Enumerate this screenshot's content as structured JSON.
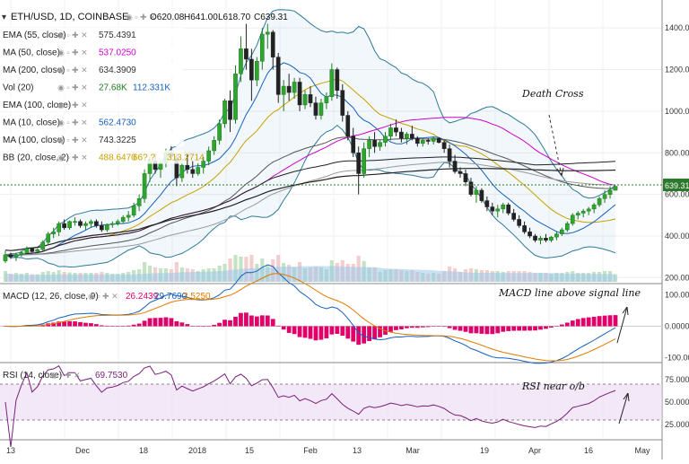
{
  "chart_data": {
    "type": "candlestick",
    "title": "ETH/USD, 1D, COINBASE",
    "ohlc": {
      "open": "O620.08",
      "high": "H641.00",
      "low": "L618.70",
      "close": "C639.31"
    },
    "last_price_label": "639.31",
    "price_axis": {
      "ticks": [
        "1400.00",
        "1200.00",
        "1000.00",
        "800.00",
        "600.00",
        "400.00",
        "200.00"
      ],
      "ylim": [
        180,
        1500
      ]
    },
    "x_ticks": [
      "13",
      "Dec",
      "18",
      "2018",
      "15",
      "Feb",
      "13",
      "Mar",
      "19",
      "Apr",
      "16",
      "May"
    ],
    "indicators": [
      {
        "label": "EMA (55, close)",
        "value": "575.4391",
        "color": "#333333"
      },
      {
        "label": "MA (50, close)",
        "value": "537.0250",
        "color": "#cc00cc"
      },
      {
        "label": "MA (200, close)",
        "value": "634.3909",
        "color": "#333333"
      },
      {
        "label": "Vol (20)",
        "value": "27.68K",
        "value2": "112.331K",
        "color": "#1e7a1e",
        "color2": "#1560bd"
      },
      {
        "label": "EMA (100, close)",
        "value": "",
        "color": "#aaaaaa"
      },
      {
        "label": "MA (10, close)",
        "value": "562.4730",
        "color": "#1560bd"
      },
      {
        "label": "MA (100, close)",
        "value": "743.3225",
        "color": "#333333"
      },
      {
        "label": "BB (20, close, 2)",
        "value": "488.6470",
        "value2": "66?.?",
        "value3": "313.2714",
        "color": "#c8a000"
      }
    ],
    "candles_approx": [
      [
        280,
        330,
        270,
        310
      ],
      [
        310,
        320,
        290,
        300
      ],
      [
        300,
        320,
        280,
        310
      ],
      [
        310,
        330,
        300,
        320
      ],
      [
        320,
        350,
        310,
        340
      ],
      [
        340,
        345,
        320,
        325
      ],
      [
        325,
        340,
        315,
        335
      ],
      [
        335,
        380,
        330,
        370
      ],
      [
        370,
        420,
        360,
        410
      ],
      [
        410,
        440,
        390,
        420
      ],
      [
        420,
        470,
        400,
        460
      ],
      [
        460,
        480,
        430,
        440
      ],
      [
        440,
        475,
        430,
        470
      ],
      [
        470,
        490,
        450,
        470
      ],
      [
        470,
        480,
        440,
        450
      ],
      [
        450,
        470,
        430,
        460
      ],
      [
        460,
        480,
        440,
        470
      ],
      [
        470,
        480,
        440,
        450
      ],
      [
        450,
        470,
        420,
        430
      ],
      [
        430,
        460,
        420,
        455
      ],
      [
        455,
        470,
        440,
        460
      ],
      [
        460,
        480,
        450,
        470
      ],
      [
        470,
        500,
        460,
        490
      ],
      [
        490,
        520,
        470,
        500
      ],
      [
        500,
        560,
        490,
        545
      ],
      [
        545,
        600,
        520,
        580
      ],
      [
        580,
        720,
        560,
        700
      ],
      [
        700,
        780,
        660,
        760
      ],
      [
        760,
        800,
        700,
        720
      ],
      [
        720,
        770,
        680,
        750
      ],
      [
        750,
        820,
        730,
        800
      ],
      [
        800,
        840,
        760,
        780
      ],
      [
        780,
        800,
        640,
        680
      ],
      [
        680,
        760,
        660,
        740
      ],
      [
        740,
        790,
        700,
        720
      ],
      [
        720,
        760,
        680,
        700
      ],
      [
        700,
        750,
        690,
        730
      ],
      [
        730,
        780,
        700,
        760
      ],
      [
        760,
        830,
        740,
        810
      ],
      [
        810,
        880,
        790,
        860
      ],
      [
        860,
        960,
        840,
        940
      ],
      [
        940,
        1060,
        920,
        1050
      ],
      [
        1050,
        1100,
        900,
        960
      ],
      [
        960,
        1220,
        940,
        1180
      ],
      [
        1180,
        1360,
        1140,
        1300
      ],
      [
        1300,
        1420,
        1200,
        1250
      ],
      [
        1250,
        1300,
        1050,
        1150
      ],
      [
        1150,
        1260,
        1120,
        1240
      ],
      [
        1240,
        1400,
        1200,
        1370
      ],
      [
        1370,
        1420,
        1300,
        1380
      ],
      [
        1380,
        1390,
        1200,
        1260
      ],
      [
        1260,
        1280,
        1040,
        1080
      ],
      [
        1080,
        1150,
        1000,
        1120
      ],
      [
        1120,
        1180,
        1050,
        1090
      ],
      [
        1090,
        1160,
        1060,
        1140
      ],
      [
        1140,
        1160,
        1000,
        1030
      ],
      [
        1030,
        1100,
        1010,
        1080
      ],
      [
        1080,
        1120,
        1020,
        1040
      ],
      [
        1040,
        1070,
        960,
        980
      ],
      [
        980,
        1060,
        960,
        1040
      ],
      [
        1040,
        1090,
        1010,
        1070
      ],
      [
        1070,
        1230,
        1050,
        1200
      ],
      [
        1200,
        1210,
        1060,
        1100
      ],
      [
        1100,
        1130,
        950,
        980
      ],
      [
        980,
        1000,
        860,
        880
      ],
      [
        880,
        920,
        780,
        800
      ],
      [
        800,
        830,
        600,
        700
      ],
      [
        700,
        850,
        680,
        820
      ],
      [
        820,
        880,
        780,
        860
      ],
      [
        860,
        900,
        800,
        830
      ],
      [
        830,
        860,
        810,
        850
      ],
      [
        850,
        900,
        830,
        880
      ],
      [
        880,
        940,
        860,
        920
      ],
      [
        920,
        960,
        880,
        900
      ],
      [
        900,
        920,
        850,
        870
      ],
      [
        870,
        900,
        840,
        890
      ],
      [
        890,
        930,
        860,
        870
      ],
      [
        870,
        880,
        830,
        845
      ],
      [
        845,
        870,
        830,
        860
      ],
      [
        860,
        870,
        840,
        855
      ],
      [
        855,
        880,
        840,
        870
      ],
      [
        870,
        875,
        845,
        850
      ],
      [
        850,
        860,
        800,
        820
      ],
      [
        820,
        840,
        730,
        760
      ],
      [
        760,
        790,
        700,
        710
      ],
      [
        710,
        730,
        680,
        700
      ],
      [
        700,
        720,
        640,
        660
      ],
      [
        660,
        680,
        590,
        600
      ],
      [
        600,
        640,
        560,
        620
      ],
      [
        620,
        630,
        560,
        570
      ],
      [
        570,
        590,
        520,
        540
      ],
      [
        540,
        560,
        500,
        520
      ],
      [
        520,
        550,
        490,
        530
      ],
      [
        530,
        560,
        510,
        550
      ],
      [
        550,
        560,
        500,
        510
      ],
      [
        510,
        530,
        470,
        480
      ],
      [
        480,
        500,
        440,
        450
      ],
      [
        450,
        470,
        410,
        420
      ],
      [
        420,
        440,
        390,
        400
      ],
      [
        400,
        410,
        370,
        380
      ],
      [
        380,
        400,
        360,
        390
      ],
      [
        390,
        410,
        370,
        380
      ],
      [
        380,
        400,
        370,
        395
      ],
      [
        395,
        420,
        380,
        410
      ],
      [
        410,
        440,
        400,
        430
      ],
      [
        430,
        470,
        420,
        460
      ],
      [
        460,
        510,
        450,
        500
      ],
      [
        500,
        520,
        480,
        510
      ],
      [
        510,
        530,
        490,
        520
      ],
      [
        520,
        540,
        500,
        530
      ],
      [
        530,
        560,
        510,
        550
      ],
      [
        550,
        590,
        540,
        580
      ],
      [
        580,
        620,
        560,
        600
      ],
      [
        600,
        640,
        580,
        620
      ],
      [
        620,
        641,
        618,
        639
      ]
    ],
    "sub_panes": [
      {
        "name": "MACD",
        "label": "MACD (12, 26, close, 9)",
        "values": [
          "26.2439",
          "29.7690",
          "3.5250"
        ],
        "ticks": [
          "100.0000",
          "0.0000",
          "-100.0000"
        ],
        "ylim": [
          -110,
          130
        ]
      },
      {
        "name": "RSI",
        "label": "RSI (14, close)",
        "values": [
          "69.7530"
        ],
        "ticks": [
          "75.0000",
          "50.0000",
          "25.0000"
        ],
        "ylim": [
          10,
          92
        ],
        "bands": [
          30,
          70
        ]
      }
    ],
    "annotations": [
      "Death Cross",
      "MACD line above signal line",
      "RSI near o/b"
    ],
    "grid": true
  }
}
